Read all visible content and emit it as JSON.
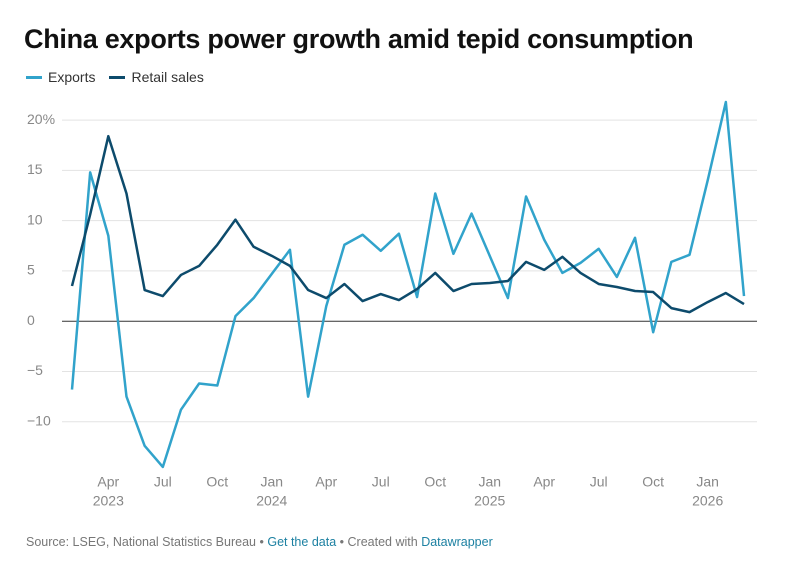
{
  "chart_data": {
    "type": "line",
    "title": "China exports power growth amid tepid consumption",
    "x": [
      "2023-02",
      "2023-03",
      "2023-04",
      "2023-05",
      "2023-06",
      "2023-07",
      "2023-08",
      "2023-09",
      "2023-10",
      "2023-11",
      "2023-12",
      "2024-01",
      "2024-02",
      "2024-03",
      "2024-04",
      "2024-05",
      "2024-06",
      "2024-07",
      "2024-08",
      "2024-09",
      "2024-10",
      "2024-11",
      "2024-12",
      "2025-01",
      "2025-02",
      "2025-03",
      "2025-04",
      "2025-05",
      "2025-06",
      "2025-07",
      "2025-08",
      "2025-09",
      "2025-10",
      "2025-11",
      "2025-12",
      "2026-01",
      "2026-02",
      "2026-03"
    ],
    "xticks": [
      {
        "value": "2023-04",
        "label": [
          "Apr",
          "2023"
        ]
      },
      {
        "value": "2023-07",
        "label": [
          "Jul"
        ]
      },
      {
        "value": "2023-10",
        "label": [
          "Oct"
        ]
      },
      {
        "value": "2024-01",
        "label": [
          "Jan",
          "2024"
        ]
      },
      {
        "value": "2024-04",
        "label": [
          "Apr"
        ]
      },
      {
        "value": "2024-07",
        "label": [
          "Jul"
        ]
      },
      {
        "value": "2024-10",
        "label": [
          "Oct"
        ]
      },
      {
        "value": "2025-01",
        "label": [
          "Jan",
          "2025"
        ]
      },
      {
        "value": "2025-04",
        "label": [
          "Apr"
        ]
      },
      {
        "value": "2025-07",
        "label": [
          "Jul"
        ]
      },
      {
        "value": "2025-10",
        "label": [
          "Oct"
        ]
      },
      {
        "value": "2026-01",
        "label": [
          "Jan",
          "2026"
        ]
      }
    ],
    "series": [
      {
        "name": "Exports",
        "color": "#31a3cb",
        "values": [
          -6.8,
          14.8,
          8.5,
          -7.5,
          -12.4,
          -14.5,
          -8.8,
          -6.2,
          -6.4,
          0.5,
          2.3,
          4.7,
          7.1,
          -7.5,
          1.5,
          7.6,
          8.6,
          7.0,
          8.7,
          2.4,
          12.7,
          6.7,
          10.7,
          6.5,
          2.3,
          12.4,
          8.1,
          4.8,
          5.8,
          7.2,
          4.4,
          8.3,
          -1.1,
          5.9,
          6.6,
          14.0,
          21.8,
          2.5
        ]
      },
      {
        "name": "Retail sales",
        "color": "#0d4b6c",
        "values": [
          3.5,
          10.6,
          18.4,
          12.7,
          3.1,
          2.5,
          4.6,
          5.5,
          7.6,
          10.1,
          7.4,
          6.5,
          5.5,
          3.1,
          2.3,
          3.7,
          2.0,
          2.7,
          2.1,
          3.2,
          4.8,
          3.0,
          3.7,
          3.8,
          4.0,
          5.9,
          5.1,
          6.4,
          4.8,
          3.7,
          3.4,
          3.0,
          2.9,
          1.3,
          0.9,
          1.9,
          2.8,
          1.7
        ]
      }
    ],
    "ylim": [
      -15,
      22
    ],
    "yticks": [
      {
        "value": -10,
        "label": "−10"
      },
      {
        "value": -5,
        "label": "−5"
      },
      0,
      5,
      10,
      15,
      {
        "value": 20,
        "label": "20%"
      }
    ],
    "grid": true,
    "legend": "top-left"
  },
  "footer": {
    "source": "Source: LSEG, National Statistics Bureau",
    "separator": "•",
    "get_data": "Get the data",
    "created_with": "Created with",
    "credit": "Datawrapper"
  }
}
